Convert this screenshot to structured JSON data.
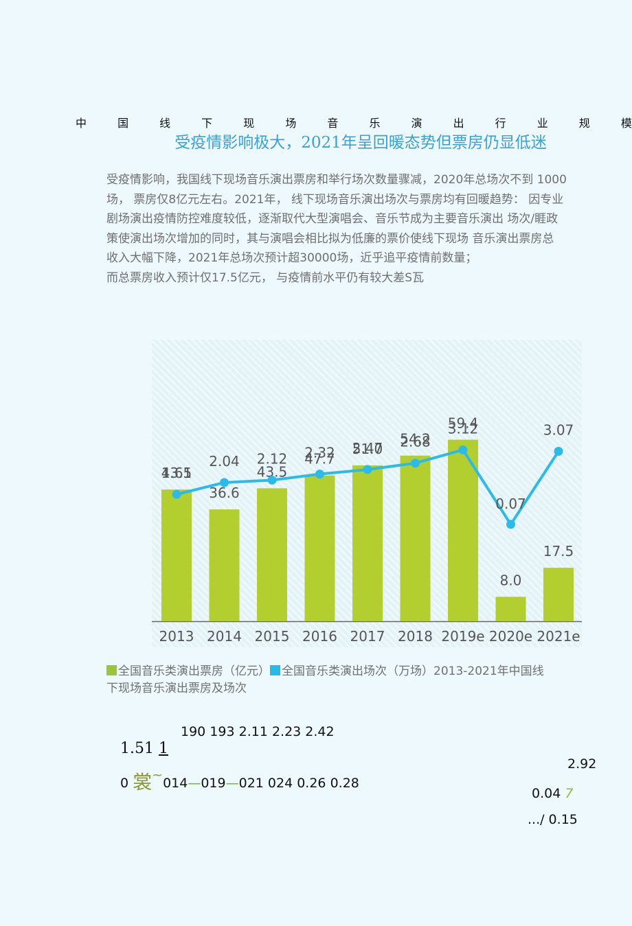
{
  "document": {
    "heading_chars": [
      "中",
      "国",
      "线",
      "下",
      "现",
      "场",
      "音",
      "乐",
      "演",
      "出",
      "行",
      "业",
      "规",
      "模"
    ],
    "subtitle": "受疫情影响极大，2021年呈回暖态势但票房仍显低迷",
    "paragraph_lines": [
      "受疫情影响，我国线下现场音乐演出票房和举行场次数量骤减，2020年总场次不到  1000",
      "场， 票房仅8亿元左右。2021年， 线下现场音乐演出场次与票房均有回暖趋势：  因专业",
      "剧场演出疫情防控难度较低，逐渐取代大型演唱会、音乐节成为主要音乐演出  场次/睚政",
      "策使演出场次增加的同时，其与演唱会相比拟为低廉的票价使线下现场   音乐演出票房总",
      "收入大幅下降，2021年总场次预计超30000场，近乎追平疫情前数量；",
      "而总票房收入预计仅17.5亿元， 与疫情前水平仍有较大差S瓦"
    ],
    "legend": {
      "bar_label": "全国音乐类演出票房（亿元）",
      "line_label": "全国音乐类演出场次（万场）",
      "caption_tail": "2013-2021年中国线",
      "caption_line2": "下现场音乐演出票房及场次"
    },
    "ocr_fragments": {
      "line1": "190 193 2.11 2.23 2.42",
      "line2_num": "1.51 ",
      "line2_under": "1",
      "line3_a": "0 ",
      "line3_glyph": "裳",
      "line3_tilde": "~",
      "line3_b": "014",
      "line3_dash1": "—",
      "line3_c": "019",
      "line3_dash2": "—",
      "line3_d": "021 024 0.26 0.28",
      "right1": "2.92",
      "right2_num": "0.04 ",
      "right2_seven": "7",
      "right3": ".../ 0.15"
    }
  },
  "chart_data": {
    "type": "bar",
    "categories": [
      "2013",
      "2014",
      "2015",
      "2016",
      "2017",
      "2018",
      "2019e",
      "2020e",
      "2021e"
    ],
    "series": [
      {
        "name": "全国音乐类演出票房（亿元）",
        "type": "bar",
        "values": [
          43.1,
          36.6,
          43.5,
          47.7,
          51.0,
          54.2,
          59.4,
          8.0,
          17.5
        ],
        "labels": [
          "43.1",
          "36.6",
          "43.5",
          "47.7",
          "51.0",
          "54.2",
          "59.4",
          "8.0",
          "17.5"
        ]
      },
      {
        "name": "全国音乐类演出场次（万场）",
        "type": "line",
        "values": [
          1.65,
          2.04,
          2.12,
          2.32,
          2.47,
          2.68,
          3.12,
          0.07,
          3.07
        ],
        "labels": [
          "1.65",
          "2.04",
          "2.12",
          "2.32",
          "2.47",
          "2.68",
          "3.12",
          "0.07",
          "3.07"
        ]
      }
    ],
    "colors": {
      "bar": "#b3cf2f",
      "line": "#2bbbe8",
      "axis": "#666666",
      "label": "#555555"
    },
    "bar_axis_max": 70,
    "line_axis_max": 6.5,
    "grid": false,
    "legend_position": "bottom"
  }
}
